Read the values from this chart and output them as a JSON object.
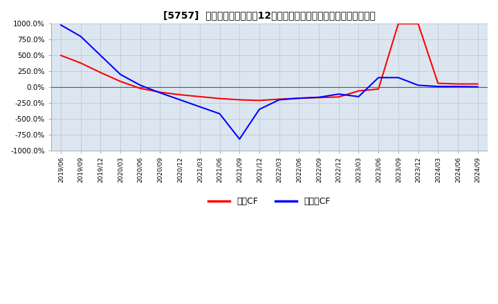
{
  "title": "[5757]  キャッシュフローの12か月移動合計の対前年同期増減率の推移",
  "title_fontsize": 10,
  "ylim": [
    -1000,
    1000
  ],
  "yticks": [
    1000,
    750,
    500,
    250,
    0,
    -250,
    -500,
    -750,
    -1000
  ],
  "ytick_labels": [
    "1000.0%",
    "750.0%",
    "500.0%",
    "250.0%",
    "0.0%",
    "-250.0%",
    "-500.0%",
    "-750.0%",
    "-1000.0%"
  ],
  "background_color": "#dce6f1",
  "legend_labels": [
    "営業CF",
    "フリーCF"
  ],
  "legend_colors": [
    "#ff0000",
    "#0000ff"
  ],
  "dates": [
    "2019/06",
    "2019/09",
    "2019/12",
    "2020/03",
    "2020/06",
    "2020/09",
    "2020/12",
    "2021/03",
    "2021/06",
    "2021/09",
    "2021/12",
    "2022/03",
    "2022/06",
    "2022/09",
    "2022/12",
    "2023/03",
    "2023/06",
    "2023/09",
    "2023/12",
    "2024/03",
    "2024/06",
    "2024/09"
  ],
  "operating_cf": [
    500,
    380,
    230,
    90,
    -20,
    -80,
    -120,
    -150,
    -180,
    -200,
    -210,
    -190,
    -175,
    -165,
    -155,
    -60,
    -30,
    1000,
    1000,
    60,
    50,
    50
  ],
  "free_cf": [
    980,
    800,
    500,
    200,
    30,
    -90,
    -200,
    -310,
    -420,
    -820,
    -350,
    -200,
    -175,
    -160,
    -110,
    -150,
    150,
    150,
    30,
    10,
    10,
    5
  ],
  "grid_color": "#aaaaaa",
  "line_width": 1.5
}
